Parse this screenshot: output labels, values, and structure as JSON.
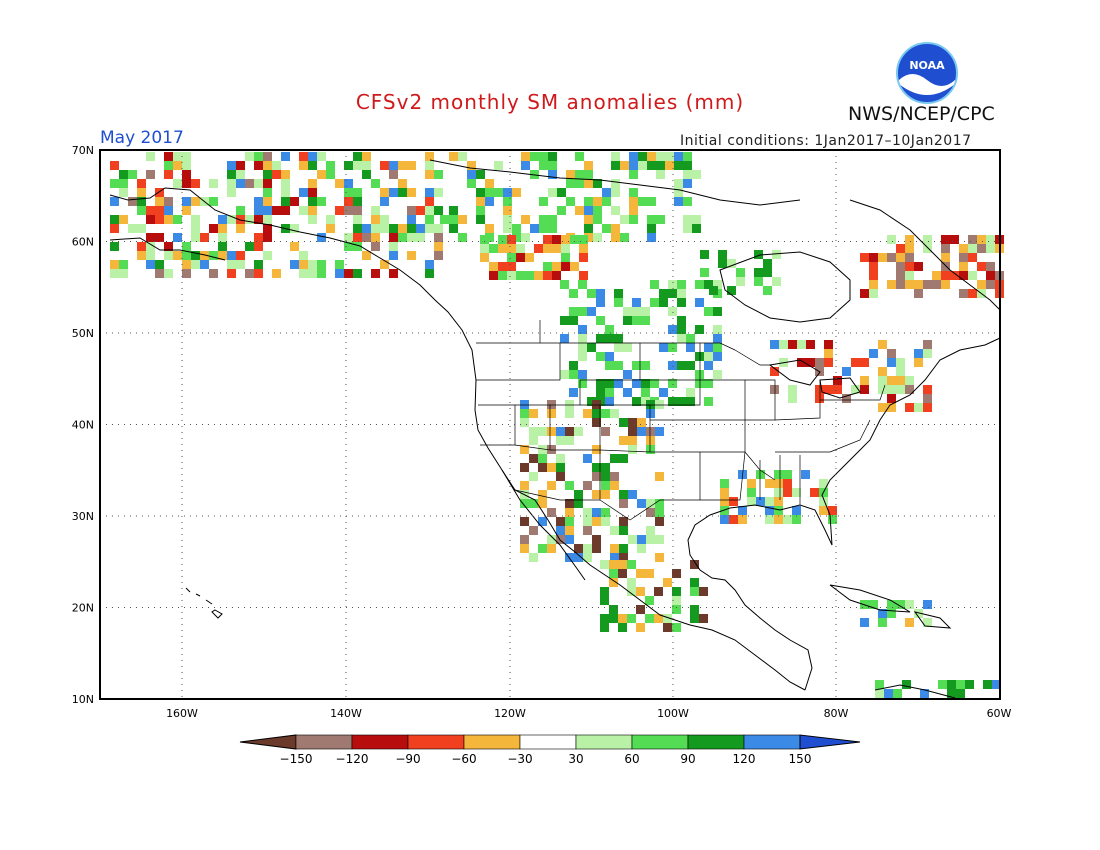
{
  "title": "CFSv2 monthly SM anomalies (mm)",
  "agency": "NWS/NCEP/CPC",
  "logo_text": "NOAA",
  "period": "May 2017",
  "initial_conditions": "Initial conditions: 1Jan2017–10Jan2017",
  "colors": {
    "title": "#d0191a",
    "period": "#1f4fd0"
  },
  "map": {
    "lat_labels": [
      "70N",
      "60N",
      "50N",
      "40N",
      "30N",
      "20N",
      "10N"
    ],
    "lon_labels": [
      "160W",
      "140W",
      "120W",
      "100W",
      "80W",
      "60W"
    ]
  },
  "colorbar": {
    "labels": [
      "−150",
      "−120",
      "−90",
      "−60",
      "−30",
      "30",
      "60",
      "90",
      "120",
      "150"
    ],
    "colors": [
      "#6b3a2a",
      "#a07a70",
      "#b80d0d",
      "#f0401f",
      "#f5b63c",
      "#ffffff",
      "#b9f2a6",
      "#54dc54",
      "#149a1e",
      "#3a8ae6",
      "#1f4fd0"
    ]
  }
}
